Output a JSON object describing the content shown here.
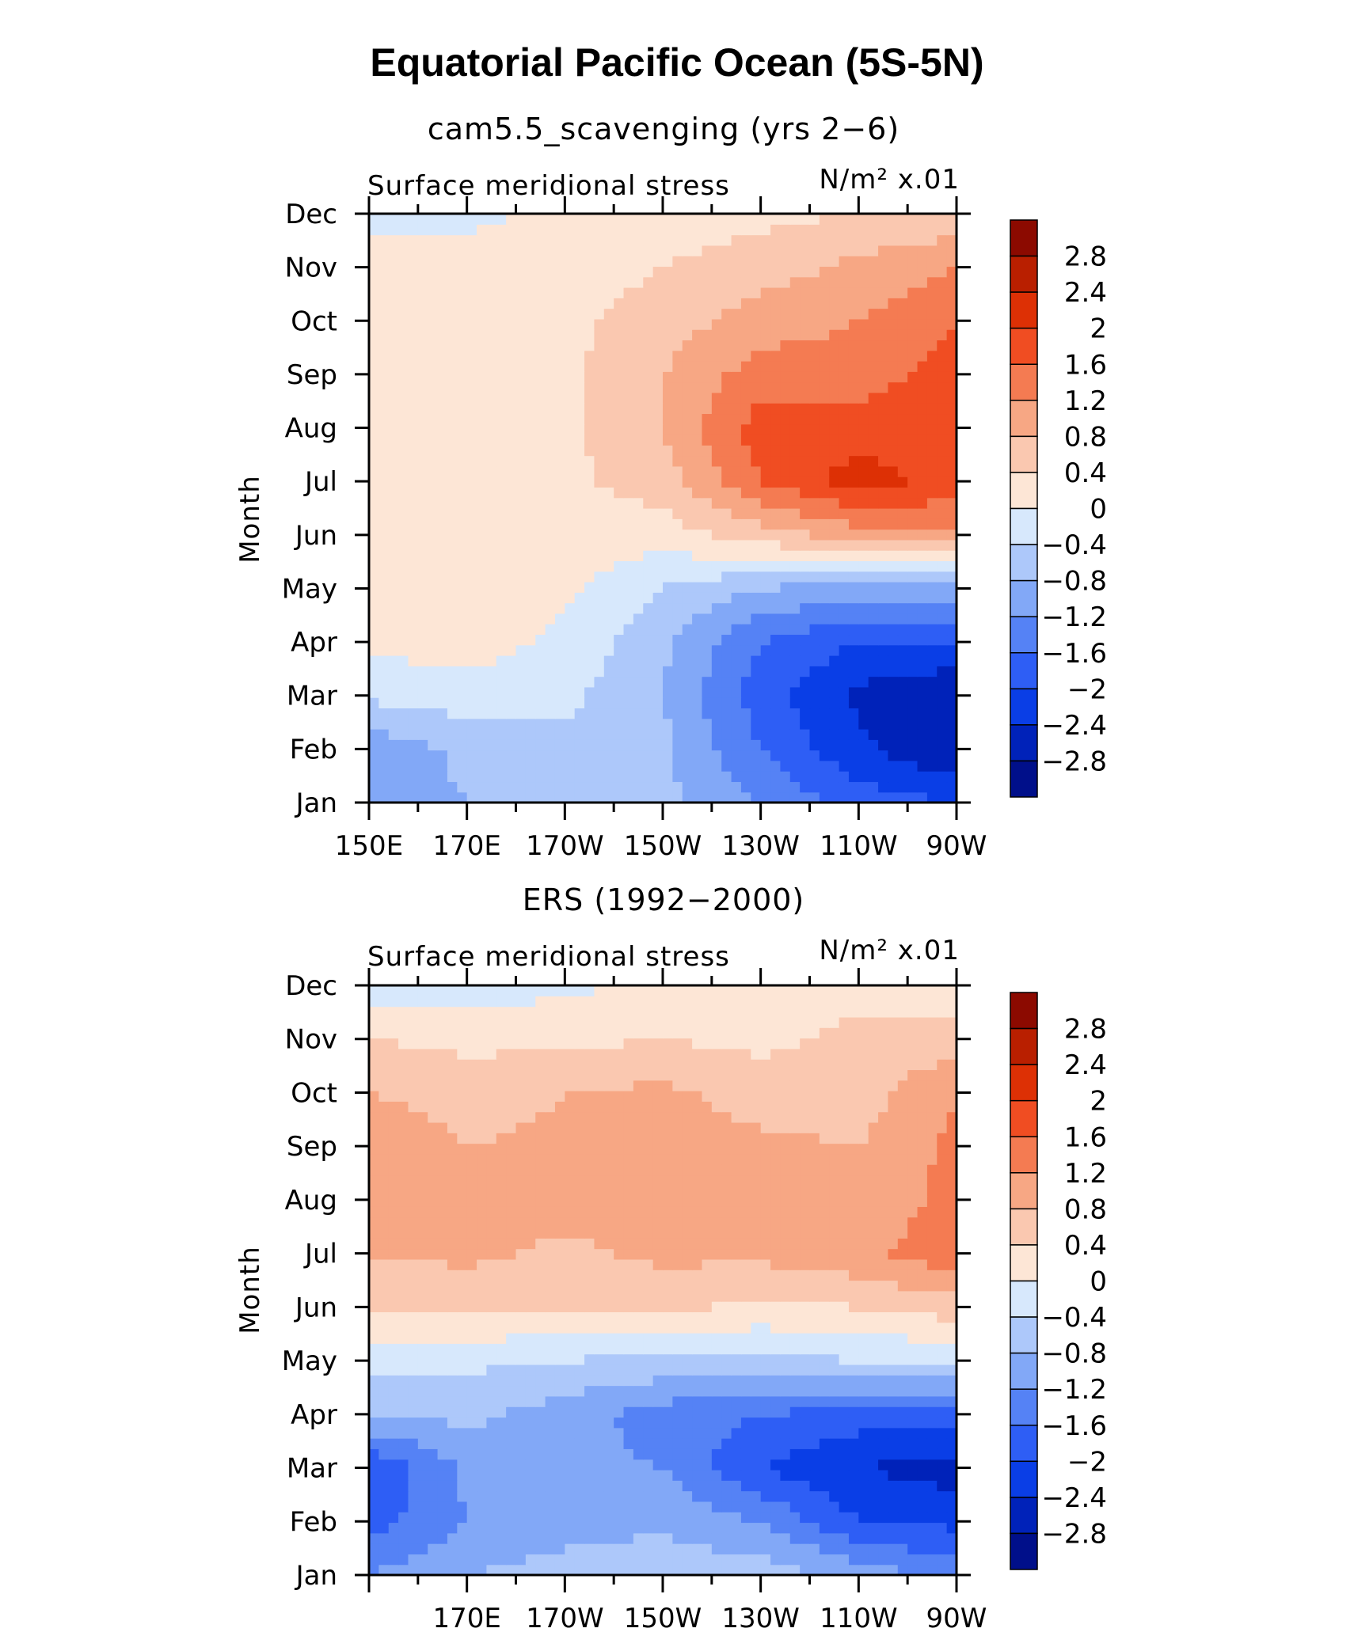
{
  "title": "Equatorial Pacific Ocean (5S-5N)",
  "colorbar": {
    "levels": [
      -2.8,
      -2.4,
      -2,
      -1.6,
      -1.2,
      -0.8,
      -0.4,
      0,
      0.4,
      0.8,
      1.2,
      1.6,
      2,
      2.4,
      2.8
    ],
    "labels": [
      "2.8",
      "2.4",
      "2",
      "1.6",
      "1.2",
      "0.8",
      "0.4",
      "0",
      "−0.4",
      "−0.8",
      "−1.2",
      "−1.6",
      "−2",
      "−2.4",
      "−2.8"
    ],
    "colors": [
      "#000f8a",
      "#0022b9",
      "#0a3ee6",
      "#2e5ef5",
      "#5582f5",
      "#82a8f7",
      "#adc8fa",
      "#d7e8fc",
      "#fde6d6",
      "#fac8b0",
      "#f7a784",
      "#f47b52",
      "#f04d22",
      "#dd3005",
      "#b91f00",
      "#8c0a00"
    ]
  },
  "chart_data": [
    {
      "type": "heatmap",
      "subtitle": "cam5.5_scavenging (yrs 2−6)",
      "left_label": "Surface meridional stress",
      "right_label": "N/m² x.01",
      "ylabel": "Month",
      "y_categories": [
        "Jan",
        "Feb",
        "Mar",
        "Apr",
        "May",
        "Jun",
        "Jul",
        "Aug",
        "Sep",
        "Oct",
        "Nov",
        "Dec"
      ],
      "x_tick_labels": [
        "150E",
        "170E",
        "170W",
        "150W",
        "130W",
        "110W",
        "90W"
      ],
      "x_range_deg_east": [
        150,
        270
      ],
      "values_note": "rows Jan..Dec, columns 150E..90W every 20 degrees",
      "z": [
        [
          -1.0,
          -0.8,
          -0.4,
          -0.7,
          -1.2,
          -1.8,
          -2.0
        ],
        [
          -1.1,
          -0.7,
          -0.5,
          -0.7,
          -1.6,
          -2.3,
          -2.8
        ],
        [
          -0.3,
          -0.2,
          -0.3,
          -0.8,
          -1.8,
          -2.5,
          -2.8
        ],
        [
          0.1,
          0.2,
          -0.1,
          -0.7,
          -1.6,
          -2.0,
          -2.0
        ],
        [
          0.2,
          0.2,
          0.1,
          -0.4,
          -0.8,
          -1.0,
          -1.0
        ],
        [
          0.3,
          0.3,
          0.2,
          0.2,
          0.6,
          1.0,
          1.2
        ],
        [
          0.4,
          0.3,
          0.3,
          0.6,
          1.6,
          2.2,
          1.8
        ],
        [
          0.4,
          0.3,
          0.3,
          0.8,
          1.8,
          1.8,
          1.8
        ],
        [
          0.4,
          0.3,
          0.3,
          0.8,
          1.4,
          1.4,
          1.8
        ],
        [
          0.1,
          0.2,
          0.3,
          0.6,
          1.0,
          1.2,
          1.6
        ],
        [
          0.1,
          0.2,
          0.2,
          0.4,
          0.6,
          0.9,
          1.2
        ],
        [
          -0.1,
          -0.1,
          0.1,
          0.2,
          0.3,
          0.4,
          0.5
        ]
      ]
    },
    {
      "type": "heatmap",
      "subtitle": "ERS (1992−2000)",
      "left_label": "Surface meridional stress",
      "right_label": "N/m² x.01",
      "ylabel": "Month",
      "y_categories": [
        "Jan",
        "Feb",
        "Mar",
        "Apr",
        "May",
        "Jun",
        "Jul",
        "Aug",
        "Sep",
        "Oct",
        "Nov",
        "Dec"
      ],
      "x_tick_labels": [
        "170E",
        "170W",
        "150W",
        "130W",
        "110W",
        "90W"
      ],
      "x_range_deg_east": [
        150,
        270
      ],
      "values_note": "rows Jan..Dec, columns 150E..90W every 20 degrees",
      "z": [
        [
          -1.2,
          -0.8,
          -0.6,
          -0.5,
          -0.6,
          -0.9,
          -1.4
        ],
        [
          -1.8,
          -1.2,
          -1.0,
          -0.9,
          -1.2,
          -2.0,
          -2.1
        ],
        [
          -2.0,
          -1.1,
          -1.1,
          -1.2,
          -2.0,
          -2.4,
          -2.6
        ],
        [
          -0.8,
          -0.7,
          -1.0,
          -1.4,
          -1.6,
          -1.8,
          -1.8
        ],
        [
          -0.3,
          -0.3,
          -0.4,
          -0.5,
          -0.5,
          -0.4,
          -0.3
        ],
        [
          0.5,
          0.5,
          0.4,
          0.5,
          0.3,
          0.4,
          0.6
        ],
        [
          0.8,
          0.9,
          0.7,
          0.9,
          0.9,
          1.1,
          1.5
        ],
        [
          1.0,
          0.8,
          1.0,
          1.0,
          0.9,
          0.8,
          1.4
        ],
        [
          1.2,
          0.8,
          0.9,
          1.0,
          0.9,
          0.8,
          1.3
        ],
        [
          0.8,
          0.6,
          0.8,
          0.9,
          0.6,
          0.6,
          1.2
        ],
        [
          0.4,
          0.3,
          0.3,
          0.4,
          0.3,
          0.5,
          0.6
        ],
        [
          -0.2,
          -0.2,
          -0.1,
          0.1,
          0.2,
          0.3,
          0.1
        ]
      ]
    }
  ]
}
